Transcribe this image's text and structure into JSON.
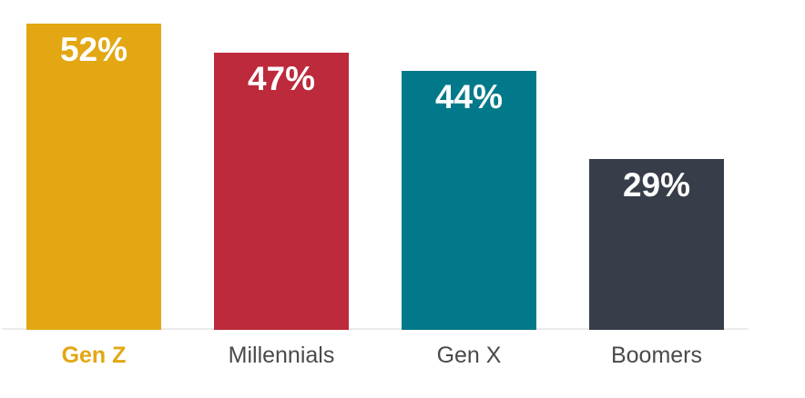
{
  "chart_data": {
    "type": "bar",
    "title": "",
    "xlabel": "",
    "ylabel": "",
    "categories": [
      "Gen Z",
      "Millennials",
      "Gen X",
      "Boomers"
    ],
    "values": [
      52,
      47,
      44,
      29
    ],
    "value_labels": [
      "52%",
      "47%",
      "44%",
      "29%"
    ],
    "unit": "%",
    "ylim": [
      0,
      56
    ],
    "grid": false,
    "legend": false,
    "bar_colors": [
      "#E2A713",
      "#BC2A3C",
      "#01798A",
      "#373E49"
    ],
    "category_label_colors": [
      "#E2A713",
      "#4A4A4A",
      "#4A4A4A",
      "#4A4A4A"
    ],
    "category_label_emphasis": [
      true,
      false,
      false,
      false
    ],
    "value_label_color": "#FFFFFF",
    "axis_line_color": "#ECECEC",
    "background_color": "#FFFFFF"
  }
}
